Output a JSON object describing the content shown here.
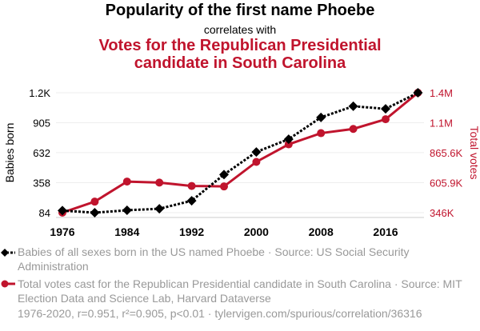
{
  "title": "Popularity of the first name Phoebe",
  "subtitle": "correlates with",
  "title2_line1": "Votes for the Republican Presidential",
  "title2_line2": "candidate in South Carolina",
  "colors": {
    "series1": "#000000",
    "series2": "#c0142d",
    "legend_text": "#999999"
  },
  "legend": [
    "Babies of all sexes born in the US named Phoebe · Source: US Social Security Administration",
    "Total votes cast for the Republican Presidential candidate in South Carolina · Source: MIT Election Data and Science Lab, Harvard Dataverse"
  ],
  "footer": "1976-2020, r=0.951, r²=0.905, p<0.01 · tylervigen.com/spurious/correlation/36316",
  "chart_data": {
    "type": "line",
    "x": [
      1976,
      1980,
      1984,
      1988,
      1992,
      1996,
      2000,
      2004,
      2008,
      2012,
      2016,
      2020
    ],
    "xticks": [
      "1976",
      "1984",
      "1992",
      "2000",
      "2008",
      "2016"
    ],
    "ylabel_left": "Babies born",
    "ylabel_right": "Total votes",
    "yticks_left": [
      {
        "v": 84,
        "label": "84"
      },
      {
        "v": 358,
        "label": "358"
      },
      {
        "v": 632,
        "label": "632"
      },
      {
        "v": 905,
        "label": "905"
      },
      {
        "v": 1179,
        "label": "1.2K"
      }
    ],
    "yticks_right": [
      {
        "v": 346000,
        "label": "346K"
      },
      {
        "v": 605900,
        "label": "605.9K"
      },
      {
        "v": 865600,
        "label": "865.6K"
      },
      {
        "v": 1125300,
        "label": "1.1M"
      },
      {
        "v": 1385000,
        "label": "1.4M"
      }
    ],
    "ylim_left": [
      84,
      1179
    ],
    "ylim_right": [
      346000,
      1385000
    ],
    "grid": true,
    "series": [
      {
        "name": "Babies born named Phoebe",
        "axis": "left",
        "values": [
          103,
          84,
          106,
          120,
          193,
          432,
          638,
          755,
          954,
          1056,
          1032,
          1179
        ]
      },
      {
        "name": "Republican votes in South Carolina",
        "axis": "right",
        "values": [
          346149,
          441841,
          615539,
          606443,
          577507,
          573458,
          785937,
          937974,
          1034896,
          1071645,
          1155389,
          1385103
        ]
      }
    ]
  }
}
